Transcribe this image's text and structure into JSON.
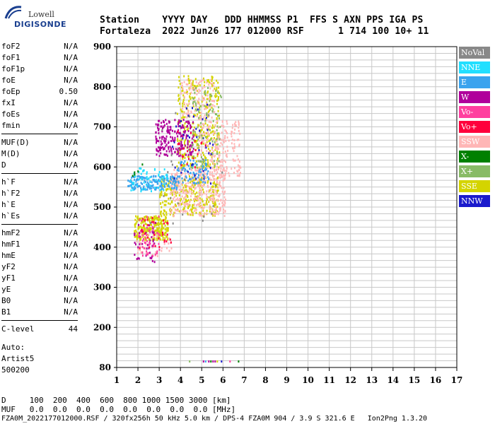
{
  "logo": {
    "line1": "Lowell",
    "line2": "DIGISONDE"
  },
  "header": {
    "line1": "Station    YYYY DAY   DDD HHMMSS P1  FFS S AXN PPS IGA PS",
    "line2": "Fortaleza  2022 Jun26 177 012000 RSF      1 714 100 10+ 11"
  },
  "params_groups": [
    [
      {
        "name": "foF2",
        "value": "N/A"
      },
      {
        "name": "foF1",
        "value": "N/A"
      },
      {
        "name": "foF1p",
        "value": "N/A"
      },
      {
        "name": "foE",
        "value": "N/A"
      },
      {
        "name": "foEp",
        "value": "0.50"
      },
      {
        "name": "fxI",
        "value": "N/A"
      },
      {
        "name": "foEs",
        "value": "N/A"
      },
      {
        "name": "fmin",
        "value": "N/A"
      }
    ],
    [
      {
        "name": "MUF(D)",
        "value": "N/A"
      },
      {
        "name": "M(D)",
        "value": "N/A"
      },
      {
        "name": "D",
        "value": "N/A"
      }
    ],
    [
      {
        "name": "h`F",
        "value": "N/A"
      },
      {
        "name": "h`F2",
        "value": "N/A"
      },
      {
        "name": "h`E",
        "value": "N/A"
      },
      {
        "name": "h`Es",
        "value": "N/A"
      }
    ],
    [
      {
        "name": "hmF2",
        "value": "N/A"
      },
      {
        "name": "hmF1",
        "value": "N/A"
      },
      {
        "name": "hmE",
        "value": "N/A"
      },
      {
        "name": "yF2",
        "value": "N/A"
      },
      {
        "name": "yF1",
        "value": "N/A"
      },
      {
        "name": "yE",
        "value": "N/A"
      },
      {
        "name": "B0",
        "value": "N/A"
      },
      {
        "name": "B1",
        "value": "N/A"
      }
    ],
    [
      {
        "name": "C-level",
        "value": "44"
      }
    ]
  ],
  "auto": {
    "line1": "Auto:",
    "line2": "Artist5",
    "line3": "500200"
  },
  "legend": [
    {
      "label": "NoVal",
      "color": "#888888"
    },
    {
      "label": "NNE",
      "color": "#22dfff"
    },
    {
      "label": "E",
      "color": "#3aa3ee"
    },
    {
      "label": "W",
      "color": "#b0009b"
    },
    {
      "label": "Vo-",
      "color": "#ff3f9f"
    },
    {
      "label": "Vo+",
      "color": "#ff003c"
    },
    {
      "label": "SSW",
      "color": "#ffb6b6"
    },
    {
      "label": "X-",
      "color": "#008000"
    },
    {
      "label": "X+",
      "color": "#88bb66"
    },
    {
      "label": "SSE",
      "color": "#d4d400"
    },
    {
      "label": "NNW",
      "color": "#1a1acc"
    }
  ],
  "axes": {
    "y_ticks": [
      "80",
      "200",
      "300",
      "400",
      "500",
      "600",
      "700",
      "800",
      "900"
    ],
    "y_values": [
      80,
      200,
      300,
      400,
      500,
      600,
      700,
      800,
      900
    ],
    "x_ticks": [
      "1",
      "2",
      "3",
      "4",
      "5",
      "6",
      "7",
      "8",
      "9",
      "10",
      "11",
      "12",
      "13",
      "14",
      "15",
      "16",
      "17"
    ]
  },
  "bottom": {
    "d_row": "D     100  200  400  600  800 1000 1500 3000 [km]",
    "muf_row": "MUF   0.0  0.0  0.0  0.0  0.0  0.0  0.0  0.0 [MHz]",
    "footer": "FZA0M_2022177012000.RSF / 320fx256h 50 kHz 5.0 km / DPS-4 FZA0M 904 / 3.9 S 321.6 E   Ion2Png 1.3.20"
  },
  "chart_data": {
    "type": "scatter",
    "xlim": [
      1,
      17
    ],
    "y_ticks_km": [
      80,
      200,
      300,
      400,
      500,
      600,
      700,
      800,
      900
    ],
    "grid": true,
    "legend_position": "right",
    "clusters": [
      {
        "series": "SSE",
        "x": [
          1.8,
          3.4
        ],
        "y": [
          420,
          480
        ],
        "n": 260
      },
      {
        "series": "SSE",
        "x": [
          3.0,
          5.8
        ],
        "y": [
          480,
          580
        ],
        "n": 320
      },
      {
        "series": "SSE",
        "x": [
          3.8,
          5.8
        ],
        "y": [
          600,
          830
        ],
        "n": 320
      },
      {
        "series": "SSW",
        "x": [
          3.5,
          6.1
        ],
        "y": [
          480,
          600
        ],
        "n": 340
      },
      {
        "series": "SSW",
        "x": [
          4.8,
          6.8
        ],
        "y": [
          580,
          720
        ],
        "n": 200
      },
      {
        "series": "SSW",
        "x": [
          4.0,
          5.6
        ],
        "y": [
          720,
          820
        ],
        "n": 110
      },
      {
        "series": "SSW",
        "x": [
          1.8,
          3.6
        ],
        "y": [
          380,
          440
        ],
        "n": 50
      },
      {
        "series": "E",
        "x": [
          1.5,
          3.8
        ],
        "y": [
          545,
          580
        ],
        "n": 170
      },
      {
        "series": "E",
        "x": [
          3.8,
          5.3
        ],
        "y": [
          560,
          620
        ],
        "n": 80
      },
      {
        "series": "W",
        "x": [
          2.8,
          4.6
        ],
        "y": [
          630,
          720
        ],
        "n": 220
      },
      {
        "series": "W",
        "x": [
          1.8,
          2.8
        ],
        "y": [
          360,
          470
        ],
        "n": 40
      },
      {
        "series": "Vo-",
        "x": [
          2.0,
          3.0
        ],
        "y": [
          380,
          480
        ],
        "n": 45
      },
      {
        "series": "Vo+",
        "x": [
          2.0,
          3.6
        ],
        "y": [
          400,
          480
        ],
        "n": 30
      },
      {
        "series": "Vo+",
        "x": [
          3.8,
          5.2
        ],
        "y": [
          600,
          700
        ],
        "n": 25
      },
      {
        "series": "NNE",
        "x": [
          1.6,
          3.4
        ],
        "y": [
          540,
          600
        ],
        "n": 55
      },
      {
        "series": "NNW",
        "x": [
          3.5,
          5.5
        ],
        "y": [
          560,
          760
        ],
        "n": 40
      },
      {
        "series": "X+",
        "x": [
          4.5,
          5.9
        ],
        "y": [
          600,
          800
        ],
        "n": 90
      },
      {
        "series": "X-",
        "x": [
          1.4,
          2.2
        ],
        "y": [
          580,
          610
        ],
        "n": 5
      },
      {
        "series": "NoVal",
        "x": [
          2.5,
          6.0
        ],
        "y": [
          450,
          750
        ],
        "n": 25
      }
    ],
    "baseline_markers_at_y": 80,
    "baseline_markers": [
      {
        "x": 4.4,
        "series": "X+"
      },
      {
        "x": 5.05,
        "series": "W"
      },
      {
        "x": 5.15,
        "series": "E"
      },
      {
        "x": 5.3,
        "series": "W"
      },
      {
        "x": 5.4,
        "series": "X-"
      },
      {
        "x": 5.5,
        "series": "W"
      },
      {
        "x": 5.6,
        "series": "W"
      },
      {
        "x": 5.7,
        "series": "SSE"
      },
      {
        "x": 5.9,
        "series": "NNW"
      },
      {
        "x": 6.3,
        "series": "Vo-"
      },
      {
        "x": 6.7,
        "series": "X-"
      }
    ]
  }
}
